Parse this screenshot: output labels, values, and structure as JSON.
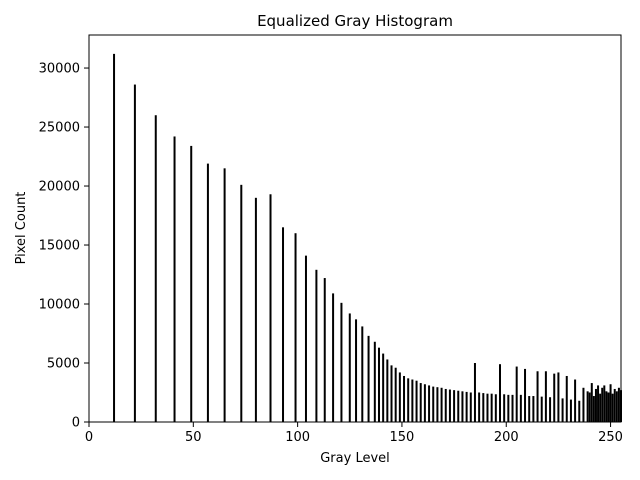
{
  "chart_data": {
    "type": "bar",
    "title": "Equalized Gray Histogram",
    "xlabel": "Gray Level",
    "ylabel": "Pixel Count",
    "xlim": [
      0,
      255
    ],
    "ylim": [
      0,
      32800
    ],
    "x_ticks": [
      "0",
      "50",
      "100",
      "150",
      "200",
      "250"
    ],
    "y_ticks": [
      "0",
      "5000",
      "10000",
      "15000",
      "20000",
      "25000",
      "30000"
    ],
    "grid": false,
    "legend": "none",
    "bar_color": "#000000",
    "x": [
      12,
      22,
      32,
      41,
      49,
      57,
      65,
      73,
      80,
      87,
      93,
      99,
      104,
      109,
      113,
      117,
      121,
      125,
      128,
      131,
      134,
      137,
      139,
      141,
      143,
      145,
      147,
      149,
      151,
      153,
      155,
      157,
      159,
      161,
      163,
      165,
      167,
      169,
      171,
      173,
      175,
      177,
      179,
      181,
      183,
      185,
      187,
      189,
      191,
      193,
      195,
      197,
      199,
      201,
      203,
      205,
      207,
      209,
      211,
      213,
      215,
      217,
      219,
      221,
      223,
      225,
      227,
      229,
      231,
      233,
      235,
      237,
      239,
      240,
      241,
      242,
      243,
      244,
      245,
      246,
      247,
      248,
      249,
      250,
      251,
      252,
      253,
      254,
      255
    ],
    "values": [
      31200,
      28600,
      26000,
      24200,
      23400,
      21900,
      21500,
      20100,
      19000,
      19300,
      16500,
      16000,
      14100,
      12900,
      12200,
      10900,
      10100,
      9200,
      8700,
      8100,
      7300,
      6800,
      6300,
      5800,
      5300,
      4800,
      4600,
      4200,
      3900,
      3700,
      3600,
      3500,
      3300,
      3200,
      3100,
      3000,
      2950,
      2900,
      2800,
      2750,
      2700,
      2650,
      2600,
      2550,
      2500,
      5000,
      2500,
      2450,
      2400,
      2400,
      2350,
      4900,
      2350,
      2300,
      2300,
      4700,
      2300,
      4500,
      2200,
      2200,
      4300,
      2150,
      4300,
      2100,
      4100,
      4200,
      2000,
      3900,
      1900,
      3600,
      1800,
      2900,
      2600,
      2500,
      3300,
      2200,
      2800,
      3100,
      2400,
      2900,
      3100,
      2600,
      2500,
      3200,
      2400,
      2800,
      2600,
      2900,
      2700
    ]
  }
}
